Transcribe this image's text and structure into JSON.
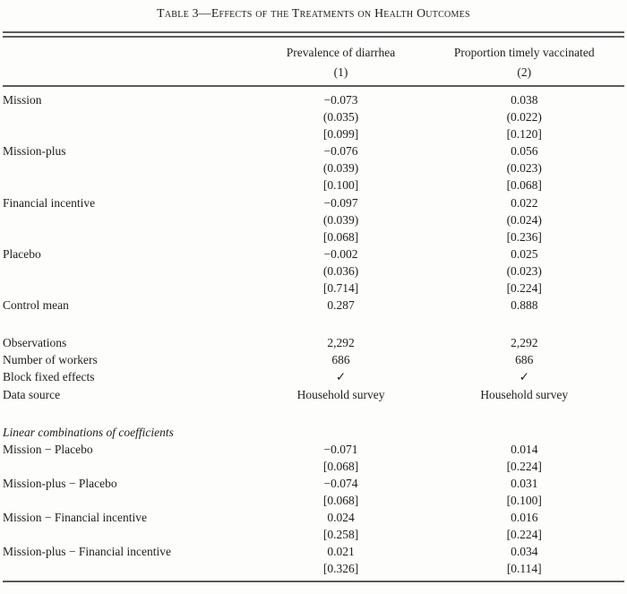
{
  "title": "Table 3—Effects of the Treatments on Health Outcomes",
  "table": {
    "col_headers": [
      {
        "title": "Prevalence of diarrhea",
        "num": "(1)"
      },
      {
        "title": "Proportion timely vaccinated",
        "num": "(2)"
      }
    ],
    "rows": [
      {
        "type": "data",
        "label": "Mission",
        "c1": "−0.073",
        "c2": "0.038"
      },
      {
        "type": "data",
        "label": "",
        "c1": "(0.035)",
        "c2": "(0.022)"
      },
      {
        "type": "data",
        "label": "",
        "c1": "[0.099]",
        "c2": "[0.120]"
      },
      {
        "type": "data",
        "label": "Mission-plus",
        "c1": "−0.076",
        "c2": "0.056"
      },
      {
        "type": "data",
        "label": "",
        "c1": "(0.039)",
        "c2": "(0.023)"
      },
      {
        "type": "data",
        "label": "",
        "c1": "[0.100]",
        "c2": "[0.068]"
      },
      {
        "type": "data",
        "label": "Financial incentive",
        "c1": "−0.097",
        "c2": "0.022"
      },
      {
        "type": "data",
        "label": "",
        "c1": "(0.039)",
        "c2": "(0.024)"
      },
      {
        "type": "data",
        "label": "",
        "c1": "[0.068]",
        "c2": "[0.236]"
      },
      {
        "type": "data",
        "label": "Placebo",
        "c1": "−0.002",
        "c2": "0.025"
      },
      {
        "type": "data",
        "label": "",
        "c1": "(0.036)",
        "c2": "(0.023)"
      },
      {
        "type": "data",
        "label": "",
        "c1": "[0.714]",
        "c2": "[0.224]"
      },
      {
        "type": "data",
        "label": "Control mean",
        "c1": "0.287",
        "c2": "0.888"
      },
      {
        "type": "spacer",
        "label": "",
        "c1": "",
        "c2": ""
      },
      {
        "type": "data",
        "label": "Observations",
        "c1": "2,292",
        "c2": "2,292"
      },
      {
        "type": "data",
        "label": "Number of workers",
        "c1": "686",
        "c2": "686"
      },
      {
        "type": "data",
        "label": "Block fixed effects",
        "c1": "✓",
        "c2": "✓"
      },
      {
        "type": "data",
        "label": "Data source",
        "c1": "Household survey",
        "c2": "Household survey"
      },
      {
        "type": "spacer",
        "label": "",
        "c1": "",
        "c2": ""
      },
      {
        "type": "section",
        "label": "Linear combinations of coefficients",
        "c1": "",
        "c2": ""
      },
      {
        "type": "data",
        "label": "Mission − Placebo",
        "c1": "−0.071",
        "c2": "0.014"
      },
      {
        "type": "data",
        "label": "",
        "c1": "[0.068]",
        "c2": "[0.224]"
      },
      {
        "type": "data",
        "label": "Mission-plus − Placebo",
        "c1": "−0.074",
        "c2": "0.031"
      },
      {
        "type": "data",
        "label": "",
        "c1": "[0.068]",
        "c2": "[0.100]"
      },
      {
        "type": "data",
        "label": "Mission − Financial incentive",
        "c1": "0.024",
        "c2": "0.016"
      },
      {
        "type": "data",
        "label": "",
        "c1": "[0.258]",
        "c2": "[0.224]"
      },
      {
        "type": "data",
        "label": "Mission-plus − Financial incentive",
        "c1": "0.021",
        "c2": "0.034"
      },
      {
        "type": "data",
        "label": "",
        "c1": "[0.326]",
        "c2": "[0.114]"
      }
    ]
  }
}
